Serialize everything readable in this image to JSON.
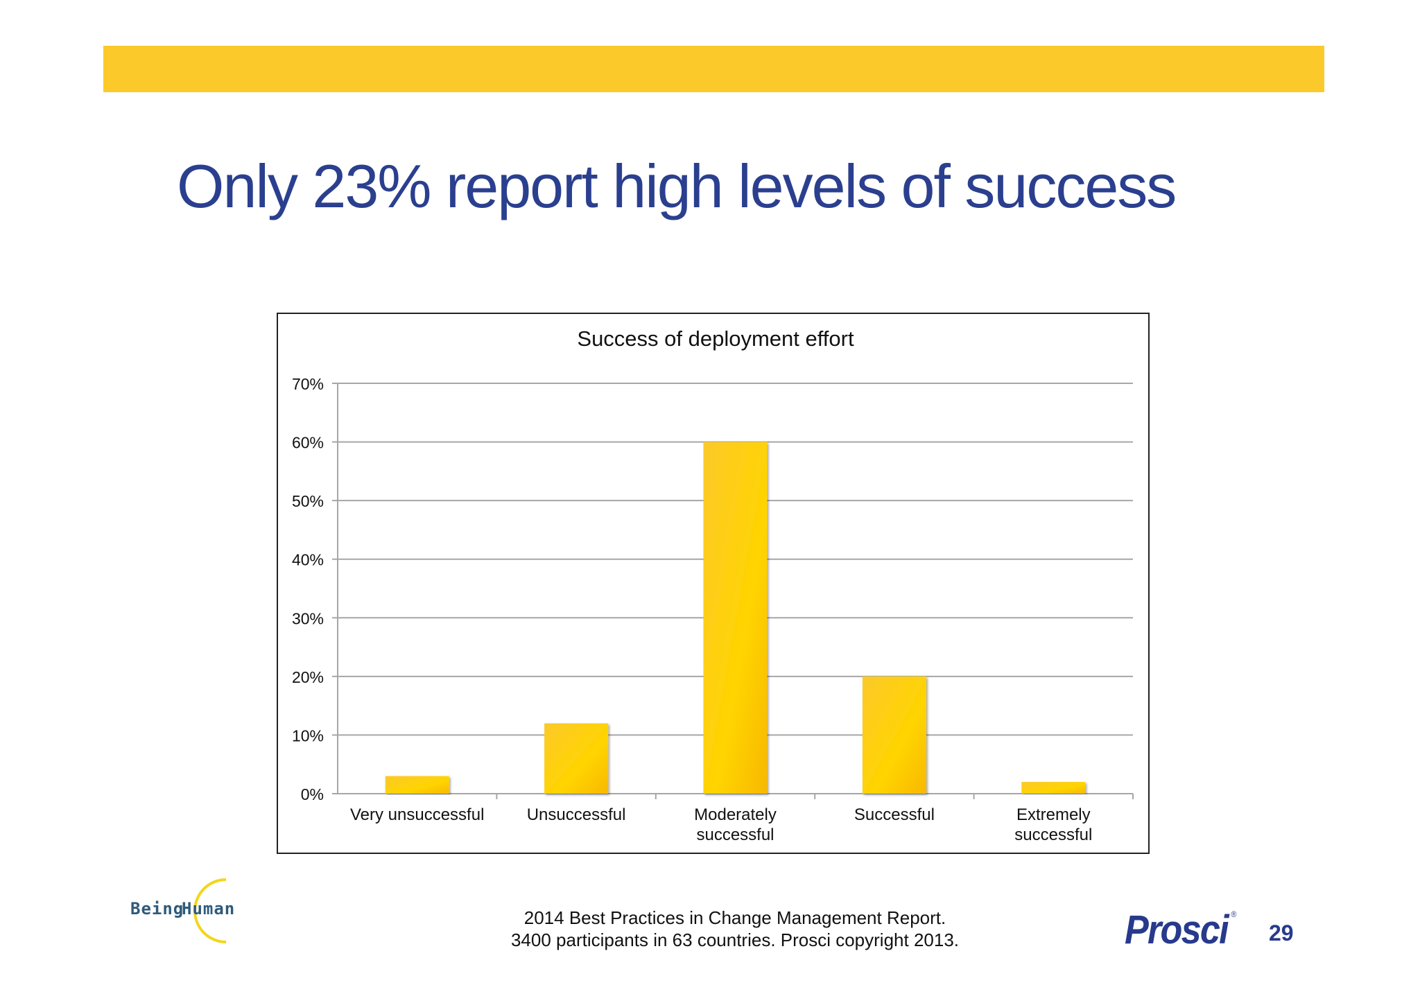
{
  "slide": {
    "title": "Only 23% report high levels of success",
    "page_number": "29",
    "source_line1": "2014 Best Practices in Change Management Report.",
    "source_line2": "3400 participants in 63 countries.  Prosci copyright 2013.",
    "logo_left_word1": "Being",
    "logo_left_word2": "Human",
    "logo_right": "Prosci",
    "logo_right_mark": "®"
  },
  "colors": {
    "band": "#fcc92a",
    "title": "#2b3f8f",
    "bar": "#fcc21e",
    "gridline": "#a6a6a6"
  },
  "chart_data": {
    "type": "bar",
    "title": "Success of deployment effort",
    "categories": [
      [
        "Very unsuccessful"
      ],
      [
        "Unsuccessful"
      ],
      [
        "Moderately",
        "successful"
      ],
      [
        "Successful"
      ],
      [
        "Extremely",
        "successful"
      ]
    ],
    "values": [
      3,
      12,
      60,
      20,
      2
    ],
    "y_ticks": [
      "0%",
      "10%",
      "20%",
      "30%",
      "40%",
      "50%",
      "60%",
      "70%"
    ],
    "ylim": [
      0,
      70
    ],
    "grid": true,
    "legend": "none"
  }
}
